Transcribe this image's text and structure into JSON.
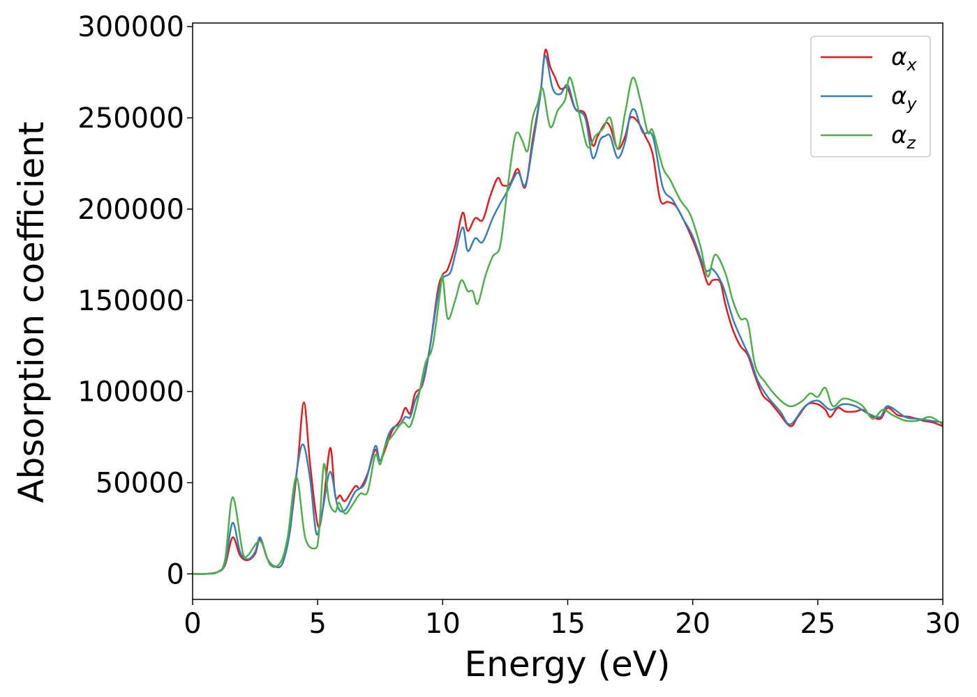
{
  "chart_data": {
    "type": "line",
    "title": "",
    "xlabel": "Energy (eV)",
    "ylabel": "Absorption coefficient",
    "xlim": [
      0,
      30
    ],
    "ylim": [
      -14000,
      302000
    ],
    "xticks": [
      0,
      5,
      10,
      15,
      20,
      25,
      30
    ],
    "yticks": [
      0,
      50000,
      100000,
      150000,
      200000,
      250000,
      300000
    ],
    "grid": false,
    "legend_position": "top-right",
    "series": [
      {
        "name": "αx",
        "color": "#e41a1c",
        "x": [
          0,
          0.5,
          1,
          1.3,
          1.6,
          1.9,
          2.2,
          2.5,
          2.7,
          3.0,
          3.3,
          3.6,
          3.9,
          4.2,
          4.45,
          4.7,
          5.0,
          5.2,
          5.5,
          5.7,
          5.9,
          6.1,
          6.5,
          6.7,
          7.0,
          7.3,
          7.5,
          7.8,
          8.0,
          8.3,
          8.5,
          8.7,
          8.9,
          9.2,
          9.5,
          9.8,
          10.0,
          10.2,
          10.5,
          10.8,
          11.0,
          11.3,
          11.6,
          11.9,
          12.2,
          12.4,
          12.7,
          13.0,
          13.3,
          13.6,
          13.9,
          14.1,
          14.3,
          14.5,
          14.7,
          15.0,
          15.3,
          15.7,
          16.0,
          16.2,
          16.5,
          16.7,
          17.0,
          17.3,
          17.5,
          17.8,
          18.1,
          18.4,
          18.7,
          19.0,
          19.3,
          19.6,
          20.0,
          20.3,
          20.6,
          20.8,
          21.1,
          21.3,
          21.6,
          21.9,
          22.2,
          22.5,
          22.8,
          23.1,
          23.4,
          23.9,
          24.2,
          24.6,
          25.0,
          25.3,
          25.5,
          25.8,
          26.1,
          26.5,
          26.8,
          27.1,
          27.5,
          27.8,
          28.2,
          28.7,
          29.2,
          29.6,
          30
        ],
        "y": [
          0,
          0,
          1000,
          5000,
          20000,
          10000,
          7500,
          11000,
          19000,
          8000,
          4000,
          6000,
          25000,
          60000,
          94000,
          60000,
          27000,
          35000,
          69000,
          43000,
          43000,
          40000,
          48000,
          47000,
          55000,
          68000,
          62000,
          72000,
          79000,
          84000,
          91000,
          88000,
          99000,
          104000,
          125000,
          155000,
          164000,
          167000,
          180000,
          198000,
          188000,
          195000,
          194000,
          207000,
          217000,
          213000,
          214000,
          222000,
          212000,
          238000,
          262000,
          287000,
          278000,
          272000,
          266000,
          266000,
          255000,
          252000,
          235000,
          240000,
          247000,
          245000,
          233000,
          240000,
          250000,
          248000,
          240000,
          230000,
          205000,
          204000,
          202000,
          195000,
          183000,
          172000,
          159000,
          161000,
          160000,
          148000,
          134000,
          125000,
          120000,
          108000,
          98000,
          94000,
          89000,
          81000,
          86000,
          93000,
          93000,
          90000,
          86000,
          91000,
          89000,
          89000,
          90000,
          87000,
          85000,
          91000,
          87000,
          86000,
          84000,
          83000,
          81000
        ]
      },
      {
        "name": "αy",
        "color": "#377eb8",
        "x": [
          0,
          0.5,
          1,
          1.3,
          1.6,
          1.9,
          2.2,
          2.5,
          2.7,
          3.0,
          3.3,
          3.6,
          3.9,
          4.1,
          4.4,
          4.7,
          4.95,
          5.2,
          5.5,
          5.8,
          6.1,
          6.5,
          6.9,
          7.3,
          7.5,
          7.8,
          8.0,
          8.3,
          8.5,
          8.7,
          8.9,
          9.2,
          9.5,
          9.8,
          10.0,
          10.3,
          10.5,
          10.8,
          11.0,
          11.3,
          11.6,
          12.0,
          12.3,
          12.6,
          13.0,
          13.3,
          13.6,
          13.9,
          14.1,
          14.4,
          14.7,
          15.0,
          15.3,
          15.7,
          16.0,
          16.3,
          16.5,
          16.7,
          17.0,
          17.3,
          17.5,
          17.7,
          18.0,
          18.4,
          18.8,
          19.2,
          19.6,
          20.0,
          20.5,
          20.8,
          21.2,
          21.6,
          22.0,
          22.3,
          22.6,
          23.0,
          23.5,
          23.9,
          24.5,
          25.0,
          25.5,
          26.0,
          26.5,
          27.0,
          27.5,
          27.8,
          28.5,
          29.0,
          29.5,
          30
        ],
        "y": [
          0,
          0,
          1000,
          6000,
          28000,
          12000,
          8000,
          12000,
          20000,
          8000,
          4000,
          6000,
          24000,
          50000,
          71000,
          52000,
          22000,
          35000,
          56000,
          37000,
          35000,
          45000,
          50000,
          70000,
          62000,
          75000,
          80000,
          82000,
          86000,
          86000,
          95000,
          105000,
          125000,
          152000,
          162000,
          165000,
          175000,
          190000,
          177000,
          184000,
          182000,
          195000,
          203000,
          210000,
          220000,
          213000,
          235000,
          262000,
          284000,
          266000,
          263000,
          268000,
          255000,
          250000,
          228000,
          238000,
          240000,
          240000,
          228000,
          237000,
          252000,
          254000,
          242000,
          240000,
          212000,
          205000,
          195000,
          185000,
          167000,
          167000,
          158000,
          140000,
          127000,
          118000,
          106000,
          97000,
          89000,
          82000,
          92000,
          95000,
          90000,
          93000,
          92000,
          88000,
          86000,
          92000,
          86000,
          85000,
          84000,
          83000
        ]
      },
      {
        "name": "αz",
        "color": "#4daf4a",
        "x": [
          0,
          0.5,
          1,
          1.3,
          1.6,
          2.0,
          2.2,
          2.7,
          3.1,
          3.5,
          3.8,
          4.15,
          4.5,
          4.9,
          5.05,
          5.25,
          5.45,
          5.7,
          5.85,
          6.1,
          6.4,
          6.7,
          7.0,
          7.3,
          7.5,
          7.7,
          8.0,
          8.4,
          8.7,
          9.0,
          9.3,
          9.6,
          9.9,
          10.0,
          10.2,
          10.5,
          10.75,
          11.0,
          11.2,
          11.4,
          11.7,
          12.0,
          12.3,
          12.6,
          12.85,
          13.0,
          13.2,
          13.4,
          13.6,
          13.8,
          14.0,
          14.3,
          14.6,
          14.9,
          15.1,
          15.5,
          15.8,
          16.1,
          16.4,
          16.7,
          17.0,
          17.3,
          17.6,
          17.9,
          18.2,
          18.4,
          18.8,
          19.1,
          19.5,
          19.9,
          20.3,
          20.6,
          20.9,
          21.3,
          21.6,
          21.9,
          22.2,
          22.5,
          22.9,
          23.3,
          23.7,
          24.0,
          24.4,
          24.7,
          25.0,
          25.3,
          25.6,
          26.0,
          26.4,
          26.8,
          27.2,
          27.6,
          28.0,
          28.5,
          29.0,
          29.5,
          30
        ],
        "y": [
          0,
          0,
          1000,
          8000,
          42000,
          12000,
          10000,
          18000,
          5000,
          6000,
          20000,
          53000,
          20000,
          14000,
          22000,
          60000,
          40000,
          34000,
          39000,
          33000,
          38000,
          44000,
          45000,
          65000,
          60000,
          70000,
          76000,
          83000,
          81000,
          95000,
          115000,
          125000,
          155000,
          163000,
          140000,
          150000,
          161000,
          155000,
          155000,
          148000,
          163000,
          174000,
          180000,
          212000,
          237000,
          242000,
          237000,
          232000,
          250000,
          258000,
          266000,
          245000,
          254000,
          260000,
          272000,
          250000,
          234000,
          240000,
          244000,
          250000,
          233000,
          253000,
          272000,
          260000,
          242000,
          243000,
          223000,
          216000,
          205000,
          197000,
          180000,
          163000,
          175000,
          165000,
          150000,
          140000,
          138000,
          114000,
          105000,
          98000,
          93000,
          92000,
          95000,
          99000,
          97000,
          102000,
          92000,
          96000,
          95000,
          92000,
          85000,
          90000,
          87000,
          84000,
          84000,
          86000,
          82000
        ]
      }
    ]
  }
}
